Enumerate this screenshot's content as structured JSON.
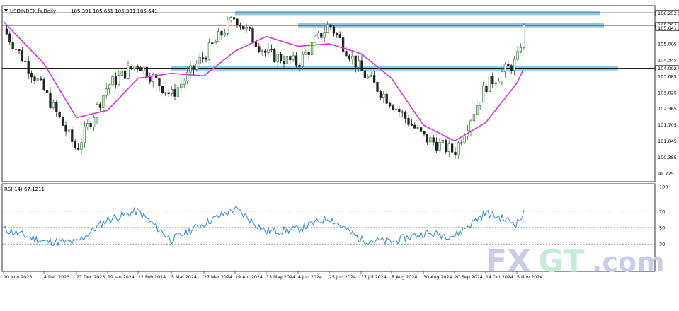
{
  "header": {
    "symbol": "USDINDEX.fs,Daily",
    "ohlc": "105.391 105.651 105.381 105.641",
    "rsi_label": "RSI(14) 67.1211"
  },
  "watermark": {
    "text_fx": "FX",
    "text_gt": "GT",
    "text_com": ".com",
    "colors": {
      "fx": "#c9cde8",
      "gt": "#c5ecd6",
      "com": "#c9cde8"
    }
  },
  "colors": {
    "bull": "#2e7d32",
    "bear": "#222222",
    "ma": "#d633d6",
    "rsi": "#3a8fd6",
    "zone": "#6fb3d9",
    "level": "#000000"
  },
  "chart_data": [
    {
      "type": "candlestick",
      "instrument": "USDINDEX.fs",
      "timeframe": "Daily",
      "ylim": [
        99.4,
        106.55
      ],
      "y_ticks": [
        {
          "value": 106.252,
          "label": "106.252",
          "highlight": true
        },
        {
          "value": 105.754,
          "label": "105.754",
          "highlight": true
        },
        {
          "value": 105.641,
          "label": "105.641",
          "highlight": true
        },
        {
          "value": 105.005,
          "label": "105.005"
        },
        {
          "value": 104.345,
          "label": "104.345"
        },
        {
          "value": 104.002,
          "label": "104.002",
          "highlight": true
        },
        {
          "value": 103.685,
          "label": "103.685"
        },
        {
          "value": 103.025,
          "label": "103.025"
        },
        {
          "value": 102.365,
          "label": "102.365"
        },
        {
          "value": 101.705,
          "label": "101.705"
        },
        {
          "value": 101.045,
          "label": "101.045"
        },
        {
          "value": 100.385,
          "label": "100.385"
        },
        {
          "value": 99.725,
          "label": "99.725"
        }
      ],
      "x_labels": [
        "10 Nov 2023",
        "4 Dec 2023",
        "27 Dec 2023",
        "19 Jan 2024",
        "12 Feb 2024",
        "5 Mar 2024",
        "27 Mar 2024",
        "19 Apr 2024",
        "13 May 2024",
        "4 Jun 2024",
        "25 Jun 2024",
        "17 Jul 2024",
        "8 Aug 2024",
        "30 Aug 2024",
        "20 Sep 2024",
        "14 Oct 2024",
        "5 Nov 2024"
      ],
      "horizontal_levels": [
        106.252,
        105.754,
        104.002
      ],
      "zones": [
        {
          "level": 106.252,
          "from_label": "19 Apr 2024"
        },
        {
          "level": 105.754,
          "from_label": "4 Jun 2024"
        },
        {
          "level": 104.002,
          "from_label": "5 Mar 2024"
        }
      ],
      "close_path": [
        [
          "10 Nov 2023",
          105.6
        ],
        [
          "4 Dec 2023",
          103.1
        ],
        [
          "27 Dec 2023",
          100.7
        ],
        [
          "19 Jan 2024",
          103.3
        ],
        [
          "12 Feb 2024",
          104.2
        ],
        [
          "5 Mar 2024",
          102.9
        ],
        [
          "27 Mar 2024",
          104.5
        ],
        [
          "19 Apr 2024",
          106.1
        ],
        [
          "13 May 2024",
          104.6
        ],
        [
          "4 Jun 2024",
          104.2
        ],
        [
          "25 Jun 2024",
          105.8
        ],
        [
          "17 Jul 2024",
          103.9
        ],
        [
          "8 Aug 2024",
          102.6
        ],
        [
          "30 Aug 2024",
          101.2
        ],
        [
          "20 Sep 2024",
          100.6
        ],
        [
          "14 Oct 2024",
          103.3
        ],
        [
          "5 Nov 2024",
          104.3
        ],
        [
          "last",
          105.64
        ]
      ],
      "ma_path": [
        [
          "10 Nov 2023",
          105.9
        ],
        [
          "4 Dec 2023",
          104.2
        ],
        [
          "27 Dec 2023",
          102.0
        ],
        [
          "19 Jan 2024",
          102.3
        ],
        [
          "12 Feb 2024",
          103.6
        ],
        [
          "5 Mar 2024",
          103.8
        ],
        [
          "27 Mar 2024",
          103.7
        ],
        [
          "19 Apr 2024",
          104.7
        ],
        [
          "13 May 2024",
          105.3
        ],
        [
          "4 Jun 2024",
          104.9
        ],
        [
          "25 Jun 2024",
          105.0
        ],
        [
          "17 Jul 2024",
          104.6
        ],
        [
          "8 Aug 2024",
          103.6
        ],
        [
          "30 Aug 2024",
          101.7
        ],
        [
          "20 Sep 2024",
          101.05
        ],
        [
          "14 Oct 2024",
          101.8
        ],
        [
          "5 Nov 2024",
          103.4
        ],
        [
          "last",
          104.0
        ]
      ]
    },
    {
      "type": "line",
      "indicator": "RSI(14)",
      "last_value": 67.1211,
      "ylim": [
        0,
        100
      ],
      "y_ticks": [
        100,
        70,
        50,
        30,
        0
      ],
      "dotted_levels": [
        70,
        50,
        30
      ],
      "x_labels": [
        "10 Nov 2023",
        "4 Dec 2023",
        "27 Dec 2023",
        "19 Jan 2024",
        "12 Feb 2024",
        "5 Mar 2024",
        "27 Mar 2024",
        "19 Apr 2024",
        "13 May 2024",
        "4 Jun 2024",
        "25 Jun 2024",
        "17 Jul 2024",
        "8 Aug 2024",
        "30 Aug 2024",
        "20 Sep 2024",
        "14 Oct 2024",
        "5 Nov 2024"
      ],
      "path": [
        [
          "10 Nov 2023",
          48
        ],
        [
          "4 Dec 2023",
          33
        ],
        [
          "27 Dec 2023",
          32
        ],
        [
          "19 Jan 2024",
          60
        ],
        [
          "12 Feb 2024",
          70
        ],
        [
          "5 Mar 2024",
          35
        ],
        [
          "27 Mar 2024",
          55
        ],
        [
          "19 Apr 2024",
          73
        ],
        [
          "13 May 2024",
          45
        ],
        [
          "4 Jun 2024",
          48
        ],
        [
          "25 Jun 2024",
          62
        ],
        [
          "17 Jul 2024",
          35
        ],
        [
          "8 Aug 2024",
          33
        ],
        [
          "30 Aug 2024",
          43
        ],
        [
          "20 Sep 2024",
          40
        ],
        [
          "14 Oct 2024",
          68
        ],
        [
          "5 Nov 2024",
          55
        ],
        [
          "last",
          67.12
        ]
      ]
    }
  ]
}
